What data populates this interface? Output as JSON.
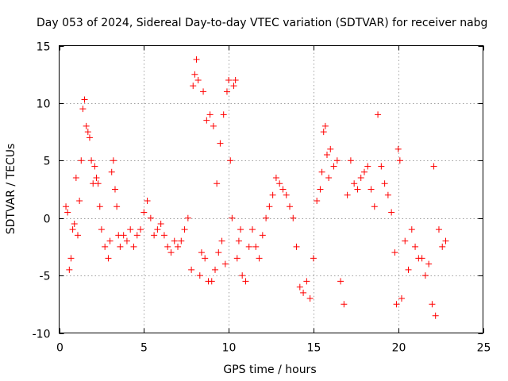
{
  "chart_data": {
    "type": "scatter",
    "title": "Day 053 of 2024, Sidereal Day-to-day VTEC variation (SDTVAR) for receiver nabg",
    "xlabel": "GPS time / hours",
    "ylabel": "SDTVAR / TECUs",
    "xlim": [
      0,
      25
    ],
    "ylim": [
      -10,
      15
    ],
    "xticks": [
      0,
      5,
      10,
      15,
      20,
      25
    ],
    "yticks": [
      -10,
      -5,
      0,
      5,
      10,
      15
    ],
    "xtick_labels": [
      "0",
      "5",
      "10",
      "15",
      "20",
      "25"
    ],
    "ytick_labels": [
      "-10",
      "-5",
      "0",
      "5",
      "10",
      "15"
    ],
    "grid": true,
    "marker": "+",
    "series": [
      {
        "name": "SDTVAR",
        "color": "#ff0000",
        "x": [
          0.4,
          0.5,
          0.6,
          0.7,
          0.8,
          0.9,
          1.0,
          1.1,
          1.2,
          1.3,
          1.4,
          1.5,
          1.6,
          1.7,
          1.8,
          1.9,
          2.0,
          2.1,
          2.2,
          2.3,
          2.4,
          2.5,
          2.7,
          2.9,
          3.0,
          3.1,
          3.2,
          3.3,
          3.4,
          3.5,
          3.6,
          3.8,
          4.0,
          4.2,
          4.4,
          4.6,
          4.8,
          5.0,
          5.2,
          5.4,
          5.6,
          5.8,
          6.0,
          6.2,
          6.4,
          6.6,
          6.8,
          7.0,
          7.2,
          7.4,
          7.6,
          7.8,
          7.9,
          8.0,
          8.1,
          8.2,
          8.3,
          8.4,
          8.5,
          8.6,
          8.7,
          8.8,
          8.9,
          9.0,
          9.1,
          9.2,
          9.3,
          9.4,
          9.5,
          9.6,
          9.7,
          9.8,
          9.9,
          10.0,
          10.1,
          10.2,
          10.3,
          10.4,
          10.5,
          10.6,
          10.7,
          10.8,
          11.0,
          11.2,
          11.4,
          11.6,
          11.8,
          12.0,
          12.2,
          12.4,
          12.6,
          12.8,
          13.0,
          13.2,
          13.4,
          13.6,
          13.8,
          14.0,
          14.2,
          14.4,
          14.6,
          14.8,
          15.0,
          15.2,
          15.4,
          15.5,
          15.6,
          15.7,
          15.8,
          15.9,
          16.0,
          16.2,
          16.4,
          16.6,
          16.8,
          17.0,
          17.2,
          17.4,
          17.6,
          17.8,
          18.0,
          18.2,
          18.4,
          18.6,
          18.8,
          19.0,
          19.2,
          19.4,
          19.6,
          19.8,
          19.9,
          20.0,
          20.1,
          20.2,
          20.4,
          20.6,
          20.8,
          21.0,
          21.2,
          21.4,
          21.6,
          21.8,
          22.0,
          22.1,
          22.2,
          22.4,
          22.6,
          22.8
        ],
        "y": [
          1.0,
          0.5,
          -4.5,
          -3.5,
          -1.0,
          -0.5,
          3.5,
          -1.5,
          1.5,
          5.0,
          9.5,
          10.3,
          8.0,
          7.5,
          7.0,
          5.0,
          3.0,
          4.5,
          3.5,
          3.0,
          1.0,
          -1.0,
          -2.5,
          -3.5,
          -2.0,
          4.0,
          5.0,
          2.5,
          1.0,
          -1.5,
          -2.5,
          -1.5,
          -2.0,
          -1.0,
          -2.5,
          -1.5,
          -1.0,
          0.5,
          1.5,
          0.0,
          -1.5,
          -1.0,
          -0.5,
          -1.5,
          -2.5,
          -3.0,
          -2.0,
          -2.5,
          -2.0,
          -1.0,
          0.0,
          -4.5,
          11.5,
          12.5,
          13.8,
          12.0,
          -5.0,
          -3.0,
          11.0,
          -3.5,
          8.5,
          -5.5,
          9.0,
          -5.5,
          8.0,
          -4.5,
          3.0,
          -3.0,
          6.5,
          -2.0,
          9.0,
          -4.0,
          11.0,
          12.0,
          5.0,
          0.0,
          11.5,
          12.0,
          -3.5,
          -2.0,
          -1.0,
          -5.0,
          -5.5,
          -2.5,
          -1.0,
          -2.5,
          -3.5,
          -1.5,
          0.0,
          1.0,
          2.0,
          3.5,
          3.0,
          2.5,
          2.0,
          1.0,
          0.0,
          -2.5,
          -6.0,
          -6.5,
          -5.5,
          -7.0,
          -3.5,
          1.5,
          2.5,
          4.0,
          7.5,
          8.0,
          5.5,
          3.5,
          6.0,
          4.5,
          5.0,
          -5.5,
          -7.5,
          2.0,
          5.0,
          3.0,
          2.5,
          3.5,
          4.0,
          4.5,
          2.5,
          1.0,
          9.0,
          4.5,
          3.0,
          2.0,
          0.5,
          -3.0,
          -7.5,
          6.0,
          5.0,
          -7.0,
          -2.0,
          -4.5,
          -1.0,
          -2.5,
          -3.5,
          -3.5,
          -5.0,
          -4.0,
          -7.5,
          4.5,
          -8.5,
          -1.0,
          -2.5,
          -2.0
        ]
      }
    ]
  }
}
